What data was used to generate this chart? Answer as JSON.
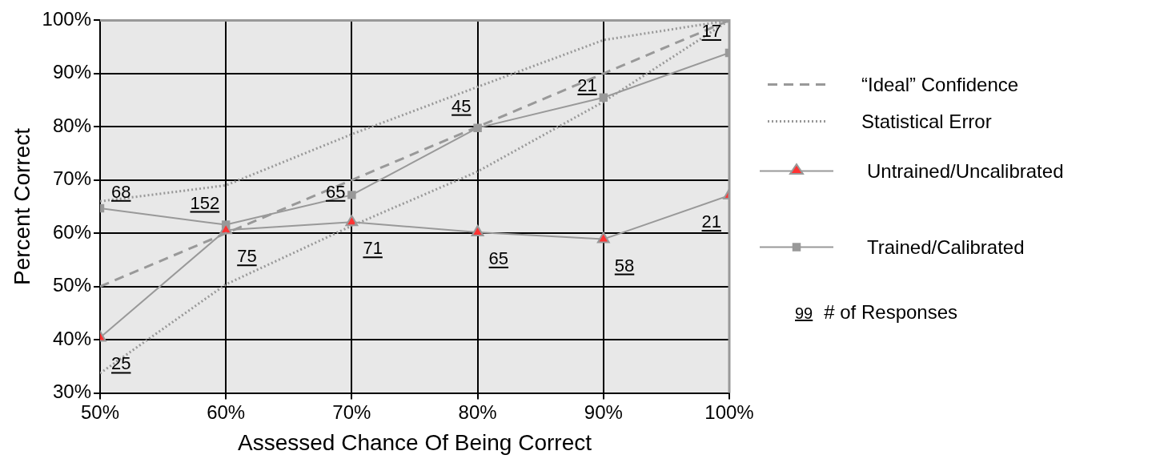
{
  "chart_data": {
    "type": "line",
    "xlabel": "Assessed Chance Of Being Correct",
    "ylabel": "Percent Correct",
    "x": [
      50,
      60,
      70,
      80,
      90,
      100
    ],
    "xlim": [
      50,
      100
    ],
    "xticks": [
      {
        "value": 50,
        "label": "50%"
      },
      {
        "value": 60,
        "label": "60%"
      },
      {
        "value": 70,
        "label": "70%"
      },
      {
        "value": 80,
        "label": "80%"
      },
      {
        "value": 90,
        "label": "90%"
      },
      {
        "value": 100,
        "label": "100%"
      }
    ],
    "ylim": [
      30,
      100
    ],
    "yticks": [
      {
        "value": 30,
        "label": "30%"
      },
      {
        "value": 40,
        "label": "40%"
      },
      {
        "value": 50,
        "label": "50%"
      },
      {
        "value": 60,
        "label": "60%"
      },
      {
        "value": 70,
        "label": "70%"
      },
      {
        "value": 80,
        "label": "80%"
      },
      {
        "value": 90,
        "label": "90%"
      },
      {
        "value": 100,
        "label": "100%"
      }
    ],
    "grid": true,
    "legend": "right",
    "series": [
      {
        "name": "“Ideal” Confidence",
        "color": "#999999",
        "line_style": "dashed",
        "marker": "none",
        "values": [
          50,
          60,
          70,
          80,
          90,
          100
        ]
      },
      {
        "name": "Statistical Error",
        "color": "#999999",
        "line_style": "dotted",
        "marker": "none",
        "values": [
          66,
          69,
          78.6,
          87.5,
          96.3,
          100
        ]
      },
      {
        "color": "#999999",
        "line_style": "dotted",
        "marker": "none",
        "values": [
          33.7,
          50.4,
          61.4,
          71.6,
          84.7,
          100
        ]
      },
      {
        "name": "Untrained/Uncalibrated",
        "color": "#999999",
        "colors": [
          "#ff3333",
          "#ff3333",
          "#ff3333",
          "#ff3333",
          "#ff3333",
          "#ff3333"
        ],
        "line_style": "solid",
        "marker": "triangle",
        "values": [
          40.4,
          60.6,
          62.1,
          60.2,
          58.9,
          67.1
        ]
      },
      {
        "name": "Trained/Calibrated",
        "color": "#999999",
        "line_style": "solid",
        "marker": "square",
        "values": [
          64.7,
          61.6,
          67.2,
          79.8,
          85.5,
          93.9
        ]
      }
    ],
    "annotations": [
      "99",
      "# of Responses",
      {
        "text": "25",
        "x": 50,
        "y": 40.4
      },
      {
        "text": "75",
        "x": 60,
        "y": 60.6
      },
      {
        "text": "71",
        "x": 70,
        "y": 62.1
      },
      {
        "text": "65",
        "x": 80,
        "y": 60.2
      },
      {
        "text": "58",
        "x": 90,
        "y": 58.9
      },
      {
        "text": "21",
        "x": 100,
        "y": 67.1
      },
      {
        "text": "68",
        "x": 50,
        "y": 64.7
      },
      {
        "text": "152",
        "x": 60,
        "y": 61.6
      },
      {
        "text": "65",
        "x": 70,
        "y": 67.2
      },
      {
        "text": "45",
        "x": 80,
        "y": 79.8
      },
      {
        "text": "21",
        "x": 90,
        "y": 85.5
      },
      {
        "text": "17",
        "x": 100,
        "y": 93.9
      }
    ]
  }
}
